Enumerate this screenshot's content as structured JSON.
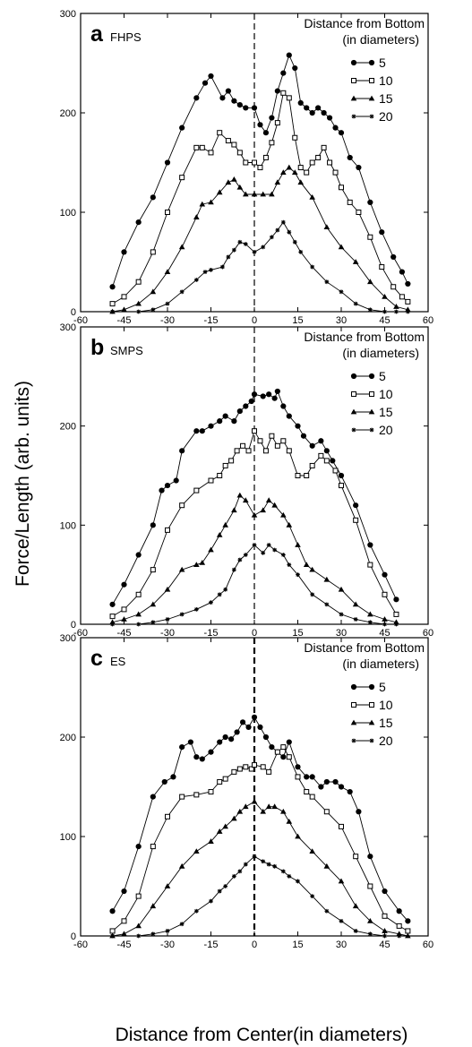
{
  "figure": {
    "ylabel": "Force/Length (arb. units)",
    "xlabel": "Distance from Center(in diameters)"
  },
  "chart_data": [
    {
      "type": "line",
      "panel_letter": "a",
      "panel_name": "FHPS",
      "legend_title_1": "Distance from Bottom",
      "legend_title_2": "(in diameters)",
      "legend_position": "top-right",
      "xlim": [
        -60,
        60
      ],
      "ylim": [
        0,
        300
      ],
      "x_ticks": [
        -60,
        -45,
        -30,
        -15,
        0,
        15,
        30,
        45,
        60
      ],
      "y_ticks": [
        0,
        100,
        200,
        300
      ],
      "grid": false,
      "center_line_x": 0,
      "series": [
        {
          "name": "5",
          "marker": "circle",
          "x": [
            -49,
            -45,
            -40,
            -35,
            -30,
            -25,
            -20,
            -17,
            -15,
            -11,
            -9,
            -7,
            -5,
            -3,
            0,
            2,
            4,
            6,
            8,
            10,
            12,
            14,
            16,
            18,
            20,
            22,
            24,
            26,
            28,
            30,
            33,
            36,
            40,
            44,
            48,
            51,
            53
          ],
          "y": [
            25,
            60,
            90,
            115,
            150,
            185,
            215,
            230,
            237,
            215,
            222,
            212,
            208,
            205,
            205,
            188,
            180,
            195,
            222,
            240,
            258,
            245,
            210,
            205,
            200,
            205,
            200,
            195,
            185,
            180,
            155,
            145,
            110,
            80,
            55,
            40,
            28
          ]
        },
        {
          "name": "10",
          "marker": "square",
          "x": [
            -49,
            -45,
            -40,
            -35,
            -30,
            -25,
            -20,
            -18,
            -15,
            -12,
            -9,
            -7,
            -5,
            -3,
            0,
            2,
            4,
            6,
            8,
            10,
            12,
            14,
            16,
            18,
            20,
            22,
            24,
            26,
            28,
            30,
            33,
            36,
            40,
            44,
            48,
            51,
            53
          ],
          "y": [
            8,
            15,
            30,
            60,
            100,
            135,
            165,
            165,
            160,
            180,
            172,
            168,
            160,
            150,
            150,
            145,
            155,
            170,
            190,
            220,
            215,
            175,
            145,
            140,
            150,
            155,
            165,
            150,
            140,
            125,
            110,
            100,
            75,
            45,
            25,
            15,
            10
          ]
        },
        {
          "name": "15",
          "marker": "triangle",
          "x": [
            -49,
            -45,
            -40,
            -35,
            -30,
            -25,
            -20,
            -18,
            -15,
            -12,
            -9,
            -7,
            -5,
            -3,
            0,
            3,
            6,
            8,
            10,
            12,
            14,
            16,
            20,
            25,
            30,
            35,
            40,
            45,
            49,
            53
          ],
          "y": [
            0,
            2,
            8,
            20,
            40,
            65,
            95,
            108,
            110,
            120,
            130,
            133,
            125,
            118,
            118,
            118,
            118,
            130,
            140,
            145,
            140,
            130,
            115,
            85,
            65,
            50,
            30,
            15,
            5,
            2
          ]
        },
        {
          "name": "20",
          "marker": "star",
          "x": [
            -49,
            -40,
            -35,
            -30,
            -25,
            -20,
            -17,
            -15,
            -11,
            -9,
            -7,
            -5,
            -3,
            0,
            3,
            6,
            8,
            10,
            12,
            14,
            16,
            20,
            25,
            30,
            35,
            40,
            45,
            49,
            53
          ],
          "y": [
            0,
            0,
            2,
            8,
            20,
            32,
            40,
            42,
            45,
            55,
            62,
            70,
            68,
            60,
            65,
            75,
            82,
            90,
            80,
            70,
            60,
            45,
            30,
            20,
            8,
            2,
            0,
            0,
            0
          ]
        }
      ]
    },
    {
      "type": "line",
      "panel_letter": "b",
      "panel_name": "SMPS",
      "legend_title_1": "Distance from Bottom",
      "legend_title_2": "(in diameters)",
      "legend_position": "top-right",
      "xlim": [
        -60,
        60
      ],
      "ylim": [
        0,
        300
      ],
      "x_ticks": [
        -60,
        -45,
        -30,
        -15,
        0,
        15,
        30,
        45,
        60
      ],
      "y_ticks": [
        0,
        100,
        200,
        300
      ],
      "grid": false,
      "center_line_x": 0,
      "series": [
        {
          "name": "5",
          "marker": "circle",
          "x": [
            -49,
            -45,
            -40,
            -35,
            -32,
            -30,
            -27,
            -25,
            -20,
            -18,
            -15,
            -12,
            -10,
            -7,
            -5,
            -3,
            -1,
            0,
            3,
            5,
            7,
            8,
            10,
            12,
            15,
            17,
            20,
            23,
            25,
            27,
            30,
            35,
            40,
            45,
            49
          ],
          "y": [
            20,
            40,
            70,
            100,
            135,
            140,
            145,
            175,
            195,
            195,
            200,
            205,
            210,
            205,
            215,
            220,
            225,
            232,
            230,
            232,
            228,
            235,
            220,
            210,
            200,
            190,
            180,
            185,
            175,
            165,
            150,
            120,
            80,
            50,
            25
          ]
        },
        {
          "name": "10",
          "marker": "square",
          "x": [
            -49,
            -45,
            -40,
            -35,
            -30,
            -25,
            -20,
            -15,
            -12,
            -10,
            -8,
            -6,
            -4,
            -2,
            0,
            2,
            4,
            6,
            8,
            10,
            12,
            15,
            18,
            20,
            23,
            25,
            28,
            30,
            35,
            40,
            45,
            49
          ],
          "y": [
            8,
            15,
            30,
            55,
            95,
            120,
            135,
            145,
            150,
            160,
            165,
            175,
            180,
            175,
            195,
            185,
            175,
            190,
            180,
            185,
            175,
            150,
            150,
            160,
            170,
            165,
            155,
            140,
            105,
            60,
            30,
            10
          ]
        },
        {
          "name": "15",
          "marker": "triangle",
          "x": [
            -49,
            -45,
            -40,
            -35,
            -30,
            -25,
            -20,
            -18,
            -15,
            -12,
            -10,
            -7,
            -5,
            -3,
            0,
            3,
            5,
            7,
            10,
            12,
            15,
            18,
            20,
            25,
            30,
            35,
            40,
            45,
            49
          ],
          "y": [
            2,
            5,
            10,
            20,
            35,
            55,
            60,
            62,
            75,
            90,
            100,
            115,
            130,
            125,
            110,
            115,
            125,
            120,
            110,
            100,
            80,
            60,
            55,
            45,
            35,
            20,
            10,
            5,
            2
          ]
        },
        {
          "name": "20",
          "marker": "star",
          "x": [
            -49,
            -40,
            -35,
            -30,
            -25,
            -20,
            -15,
            -12,
            -10,
            -7,
            -5,
            -3,
            0,
            3,
            5,
            7,
            10,
            12,
            15,
            20,
            25,
            30,
            35,
            40,
            45,
            49
          ],
          "y": [
            0,
            0,
            2,
            5,
            10,
            15,
            22,
            30,
            35,
            55,
            65,
            70,
            80,
            72,
            80,
            75,
            70,
            60,
            50,
            30,
            20,
            10,
            5,
            2,
            0,
            0
          ]
        }
      ]
    },
    {
      "type": "line",
      "panel_letter": "c",
      "panel_name": "ES",
      "legend_title_1": "Distance from Bottom",
      "legend_title_2": "(in diameters)",
      "legend_position": "top-right",
      "xlim": [
        -60,
        60
      ],
      "ylim": [
        0,
        300
      ],
      "x_ticks": [
        -60,
        -45,
        -30,
        -15,
        0,
        15,
        30,
        45,
        60
      ],
      "y_ticks": [
        0,
        100,
        200,
        300
      ],
      "grid": false,
      "center_line_x": 0,
      "series": [
        {
          "name": "5",
          "marker": "circle",
          "x": [
            -49,
            -45,
            -40,
            -35,
            -31,
            -28,
            -25,
            -22,
            -20,
            -18,
            -15,
            -12,
            -10,
            -8,
            -6,
            -4,
            -2,
            0,
            2,
            4,
            6,
            8,
            10,
            12,
            15,
            18,
            20,
            23,
            25,
            28,
            30,
            33,
            36,
            40,
            45,
            50,
            53
          ],
          "y": [
            25,
            45,
            90,
            140,
            155,
            160,
            190,
            195,
            180,
            178,
            185,
            195,
            200,
            198,
            205,
            215,
            210,
            220,
            210,
            200,
            190,
            185,
            180,
            195,
            170,
            160,
            160,
            150,
            155,
            155,
            150,
            145,
            125,
            80,
            45,
            25,
            15
          ]
        },
        {
          "name": "10",
          "marker": "square",
          "x": [
            -49,
            -45,
            -40,
            -35,
            -30,
            -25,
            -20,
            -15,
            -12,
            -10,
            -7,
            -5,
            -3,
            -1,
            0,
            3,
            5,
            8,
            10,
            12,
            15,
            18,
            20,
            25,
            30,
            35,
            40,
            45,
            50,
            53
          ],
          "y": [
            5,
            15,
            40,
            90,
            120,
            140,
            142,
            145,
            155,
            158,
            165,
            168,
            170,
            168,
            172,
            170,
            165,
            185,
            190,
            180,
            160,
            145,
            140,
            125,
            110,
            80,
            50,
            20,
            10,
            5
          ]
        },
        {
          "name": "15",
          "marker": "triangle",
          "x": [
            -49,
            -45,
            -40,
            -35,
            -30,
            -25,
            -20,
            -15,
            -12,
            -10,
            -7,
            -5,
            -3,
            0,
            3,
            5,
            7,
            10,
            12,
            15,
            20,
            25,
            30,
            35,
            40,
            45,
            50,
            53
          ],
          "y": [
            0,
            2,
            10,
            30,
            50,
            70,
            85,
            95,
            105,
            110,
            118,
            125,
            130,
            135,
            125,
            130,
            130,
            125,
            115,
            100,
            85,
            70,
            55,
            30,
            15,
            5,
            2,
            0
          ]
        },
        {
          "name": "20",
          "marker": "star",
          "x": [
            -49,
            -40,
            -35,
            -30,
            -25,
            -20,
            -15,
            -12,
            -10,
            -7,
            -5,
            -3,
            0,
            3,
            5,
            7,
            10,
            12,
            15,
            20,
            25,
            30,
            35,
            40,
            45,
            50
          ],
          "y": [
            0,
            0,
            2,
            5,
            12,
            25,
            35,
            45,
            50,
            60,
            65,
            72,
            80,
            75,
            72,
            70,
            65,
            60,
            55,
            40,
            25,
            15,
            5,
            2,
            0,
            0
          ]
        }
      ]
    }
  ]
}
